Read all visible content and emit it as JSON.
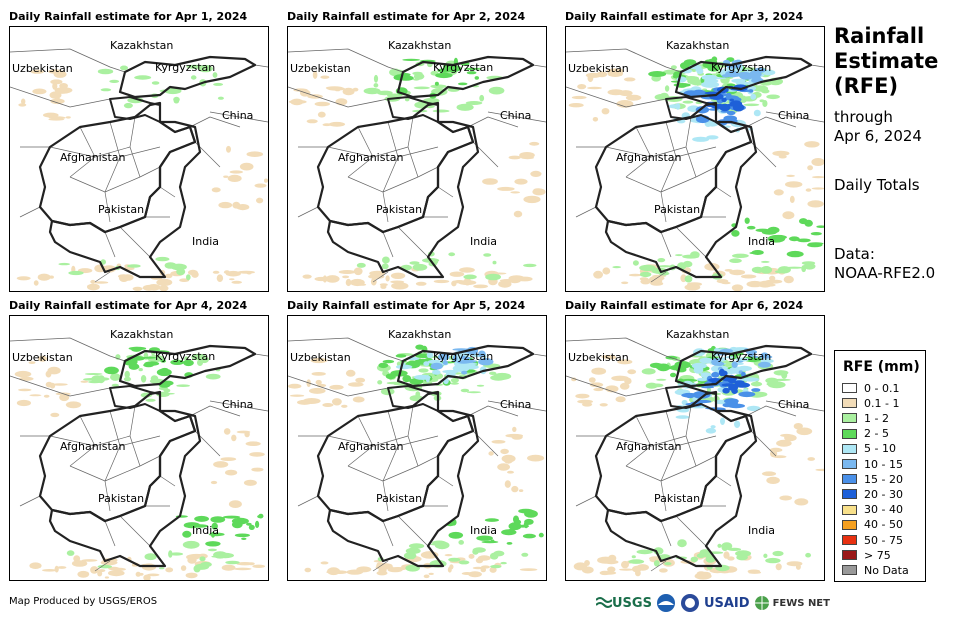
{
  "panels": [
    {
      "title": "Daily Rainfall estimate for Apr 1, 2024",
      "intensity": 0
    },
    {
      "title": "Daily Rainfall estimate for Apr 2, 2024",
      "intensity": 1
    },
    {
      "title": "Daily Rainfall estimate for Apr 3, 2024",
      "intensity": 3
    },
    {
      "title": "Daily Rainfall estimate for Apr 4, 2024",
      "intensity": 1
    },
    {
      "title": "Daily Rainfall estimate for Apr 5, 2024",
      "intensity": 2
    },
    {
      "title": "Daily Rainfall estimate for Apr 6, 2024",
      "intensity": 3
    }
  ],
  "map_labels": {
    "kazakhstan": "Kazakhstan",
    "uzbekistan": "Uzbekistan",
    "kyrgyzstan": "Kyrgyzstan",
    "china": "China",
    "afghanistan": "Afghanistan",
    "pakistan": "Pakistan",
    "india": "India"
  },
  "sidebar": {
    "title_lines": [
      "Rainfall",
      "Estimate",
      "(RFE)"
    ],
    "through": "through",
    "date": "Apr 6, 2024",
    "totals": "Daily Totals",
    "data_label": "Data:",
    "data_source": "NOAA-RFE2.0"
  },
  "legend": {
    "title": "RFE (mm)",
    "items": [
      {
        "label": "0 - 0.1",
        "color": "#ffffff"
      },
      {
        "label": "0.1 - 1",
        "color": "#f2dcb8"
      },
      {
        "label": "1 - 2",
        "color": "#aaf0a0"
      },
      {
        "label": "2 - 5",
        "color": "#5ed95a"
      },
      {
        "label": "5 - 10",
        "color": "#aee7f5"
      },
      {
        "label": "10 - 15",
        "color": "#7ab8f0"
      },
      {
        "label": "15 - 20",
        "color": "#4a90e8"
      },
      {
        "label": "20 - 30",
        "color": "#1e60d8"
      },
      {
        "label": "30 - 40",
        "color": "#f8e08a"
      },
      {
        "label": "40 - 50",
        "color": "#f5a020"
      },
      {
        "label": "50 - 75",
        "color": "#e83010"
      },
      {
        "label": "> 75",
        "color": "#9a1818"
      },
      {
        "label": "No Data",
        "color": "#999999"
      }
    ]
  },
  "footer": "Map Produced by USGS/EROS",
  "logos": {
    "usgs": "USGS",
    "usaid": "USAID",
    "fews": "FEWS NET"
  }
}
